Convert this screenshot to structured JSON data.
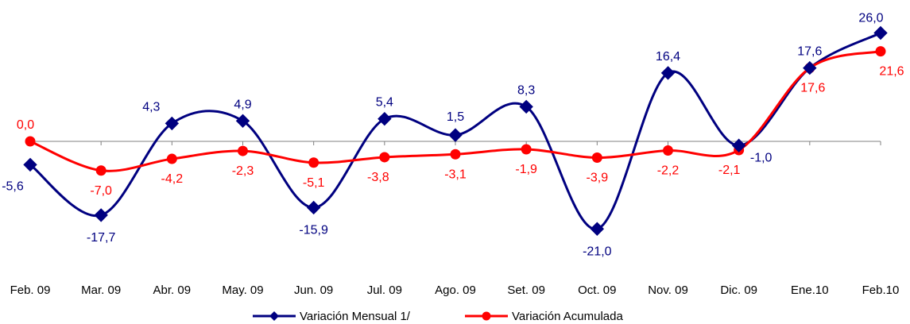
{
  "chart_data": {
    "type": "line",
    "categories": [
      "Feb. 09",
      "Mar. 09",
      "Abr. 09",
      "May. 09",
      "Jun. 09",
      "Jul. 09",
      "Ago. 09",
      "Set. 09",
      "Oct. 09",
      "Nov. 09",
      "Dic. 09",
      "Ene.10",
      "Feb.10"
    ],
    "series": [
      {
        "name": "Variación Mensual 1/",
        "color": "#000080",
        "marker": "diamond",
        "values": [
          -5.6,
          -17.7,
          4.3,
          4.9,
          -15.9,
          5.4,
          1.5,
          8.3,
          -21.0,
          16.4,
          -1.0,
          17.6,
          26.0
        ],
        "labels": [
          "-5,6",
          "-17,7",
          "4,3",
          "4,9",
          "-15,9",
          "5,4",
          "1,5",
          "8,3",
          "-21,0",
          "16,4",
          "-1,0",
          "17,6",
          "26,0"
        ]
      },
      {
        "name": "Variación Acumulada",
        "color": "#ff0000",
        "marker": "circle",
        "values": [
          0.0,
          -7.0,
          -4.2,
          -2.3,
          -5.1,
          -3.8,
          -3.1,
          -1.9,
          -3.9,
          -2.2,
          -2.1,
          17.6,
          21.6
        ],
        "labels": [
          "0,0",
          "-7,0",
          "-4,2",
          "-2,3",
          "-5,1",
          "-3,8",
          "-3,1",
          "-1,9",
          "-3,9",
          "-2,2",
          "-2,1",
          "17,6",
          "21,6"
        ]
      }
    ],
    "smooth": true,
    "grid": false,
    "legend_position": "bottom-center"
  }
}
